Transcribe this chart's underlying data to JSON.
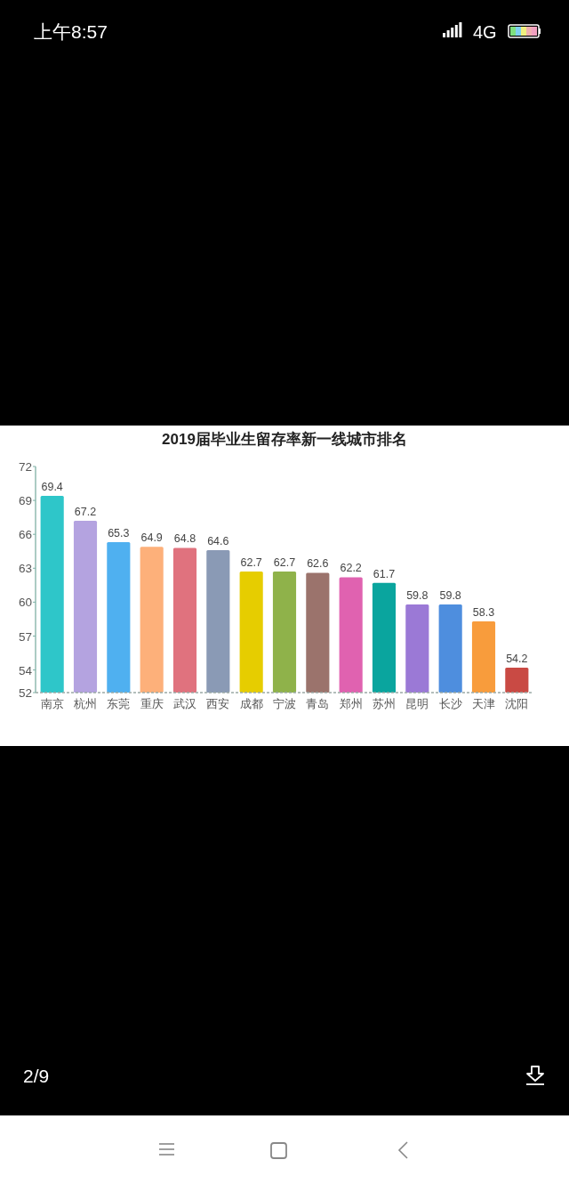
{
  "chart_data": {
    "type": "bar",
    "title": "2019届毕业生留存率新一线城市排名",
    "categories": [
      "南京",
      "杭州",
      "东莞",
      "重庆",
      "武汉",
      "西安",
      "成都",
      "宁波",
      "青岛",
      "郑州",
      "苏州",
      "昆明",
      "长沙",
      "天津",
      "沈阳"
    ],
    "values": [
      69.4,
      67.2,
      65.3,
      64.9,
      64.8,
      64.6,
      62.7,
      62.7,
      62.6,
      62.2,
      61.7,
      59.8,
      59.8,
      58.3,
      54.2
    ],
    "colors": [
      "#2ec6c9",
      "#b4a3e0",
      "#4fb0f0",
      "#fdb07a",
      "#e0727e",
      "#8a9ab5",
      "#e6cd00",
      "#8fb24a",
      "#9b736c",
      "#e062b0",
      "#0aa59e",
      "#9b79d6",
      "#4e8ede",
      "#f89c3c",
      "#c94a44"
    ],
    "ylim": [
      52,
      72
    ],
    "yticks": [
      52,
      54,
      57,
      60,
      63,
      66,
      69,
      72
    ],
    "data_labels": true,
    "annotations": [
      "上午8:57",
      "4G",
      "2/9"
    ]
  }
}
